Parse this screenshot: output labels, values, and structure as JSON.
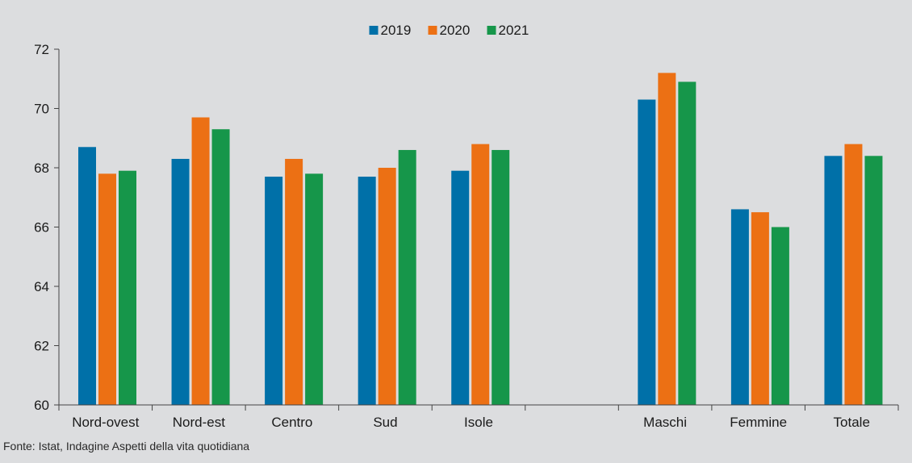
{
  "chart_data": {
    "type": "bar",
    "categories": [
      "Nord-ovest",
      "Nord-est",
      "Centro",
      "Sud",
      "Isole",
      "",
      "Maschi",
      "Femmine",
      "Totale"
    ],
    "series": [
      {
        "name": "2019",
        "color": "#0070a8",
        "values": [
          68.7,
          68.3,
          67.7,
          67.7,
          67.9,
          null,
          70.3,
          66.6,
          68.4
        ]
      },
      {
        "name": "2020",
        "color": "#ec7014",
        "values": [
          67.8,
          69.7,
          68.3,
          68.0,
          68.8,
          null,
          71.2,
          66.5,
          68.8
        ]
      },
      {
        "name": "2021",
        "color": "#16964a",
        "values": [
          67.9,
          69.3,
          67.8,
          68.6,
          68.6,
          null,
          70.9,
          66.0,
          68.4
        ]
      }
    ],
    "yticks": [
      60,
      62,
      64,
      66,
      68,
      70,
      72
    ],
    "ylim": [
      60,
      72
    ],
    "legend_position": "top-center",
    "grid": false
  },
  "source_note": "Fonte: Istat, Indagine Aspetti della vita quotidiana"
}
